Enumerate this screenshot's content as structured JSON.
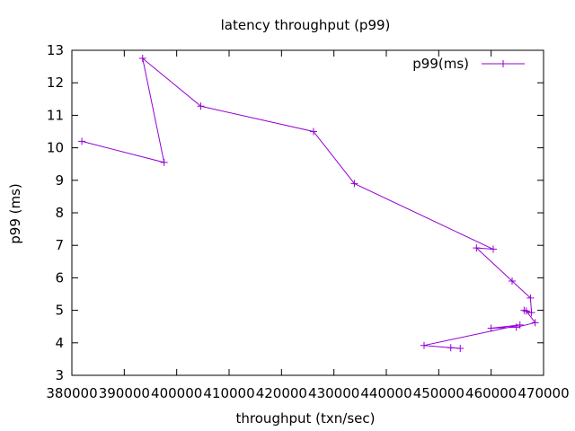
{
  "chart_data": {
    "type": "line",
    "title": "latency throughput (p99)",
    "xlabel": "throughput (txn/sec)",
    "ylabel": "p99 (ms)",
    "xlim": [
      380000,
      470000
    ],
    "ylim": [
      3,
      13
    ],
    "x_ticks": [
      380000,
      390000,
      400000,
      410000,
      420000,
      430000,
      440000,
      450000,
      460000,
      470000
    ],
    "y_ticks": [
      3,
      4,
      5,
      6,
      7,
      8,
      9,
      10,
      11,
      12,
      13
    ],
    "legend_position": "top-right",
    "grid": false,
    "series": [
      {
        "name": "p99(ms)",
        "color": "#9400d3",
        "marker": "plus",
        "points": [
          [
            381900,
            10.2
          ],
          [
            397600,
            9.55
          ],
          [
            393500,
            12.75
          ],
          [
            404600,
            11.28
          ],
          [
            426100,
            10.5
          ],
          [
            433900,
            8.9
          ],
          [
            460400,
            6.88
          ],
          [
            457200,
            6.92
          ],
          [
            464000,
            5.9
          ],
          [
            467500,
            5.38
          ],
          [
            467700,
            4.93
          ],
          [
            466300,
            5.0
          ],
          [
            466700,
            4.98
          ],
          [
            468400,
            4.62
          ],
          [
            464800,
            4.48
          ],
          [
            460000,
            4.45
          ],
          [
            465500,
            4.55
          ],
          [
            447200,
            3.92
          ],
          [
            452300,
            3.85
          ],
          [
            454100,
            3.83
          ]
        ]
      }
    ]
  }
}
